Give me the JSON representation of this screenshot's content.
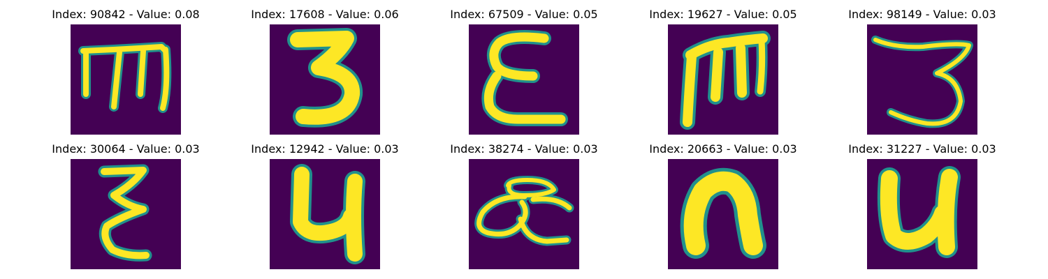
{
  "figure": {
    "panels": [
      {
        "index": "90842",
        "value": "0.08",
        "title": "Index: 90842 - Value: 0.08",
        "glyph": "handwritten-m"
      },
      {
        "index": "17608",
        "value": "0.06",
        "title": "Index: 17608 - Value: 0.06",
        "glyph": "handwritten-3"
      },
      {
        "index": "67509",
        "value": "0.05",
        "title": "Index: 67509 - Value: 0.05",
        "glyph": "handwritten-epsilon"
      },
      {
        "index": "19627",
        "value": "0.05",
        "title": "Index: 19627 - Value: 0.05",
        "glyph": "handwritten-m"
      },
      {
        "index": "98149",
        "value": "0.03",
        "title": "Index: 98149 - Value: 0.03",
        "glyph": "handwritten-3"
      },
      {
        "index": "30064",
        "value": "0.03",
        "title": "Index: 30064 - Value: 0.03",
        "glyph": "handwritten-xi"
      },
      {
        "index": "12942",
        "value": "0.03",
        "title": "Index: 12942 - Value: 0.03",
        "glyph": "handwritten-u"
      },
      {
        "index": "38274",
        "value": "0.03",
        "title": "Index: 38274 - Value: 0.03",
        "glyph": "handwritten-alpha"
      },
      {
        "index": "20663",
        "value": "0.03",
        "title": "Index: 20663 - Value: 0.03",
        "glyph": "handwritten-n"
      },
      {
        "index": "31227",
        "value": "0.03",
        "title": "Index: 31227 - Value: 0.03",
        "glyph": "handwritten-u"
      }
    ],
    "colors": {
      "background": "#440154",
      "stroke_core": "#fde725",
      "stroke_edge": "#21918c"
    }
  }
}
